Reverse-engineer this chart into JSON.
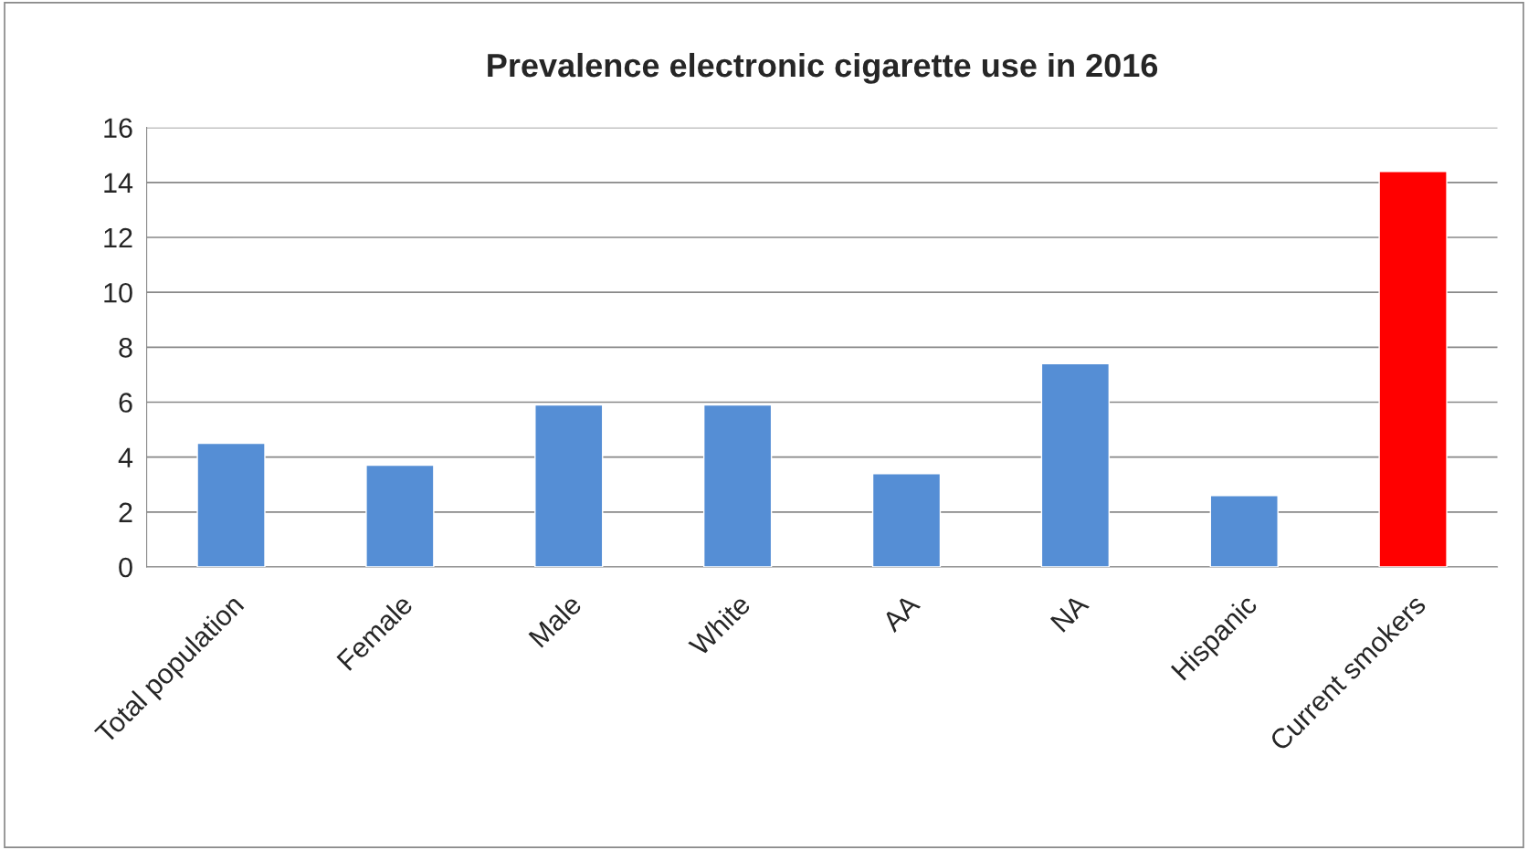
{
  "chart_data": {
    "type": "bar",
    "title": "Prevalence electronic cigarette use in 2016",
    "categories": [
      "Total population",
      "Female",
      "Male",
      "White",
      "AA",
      "NA",
      "Hispanic",
      "Current smokers"
    ],
    "values": [
      4.5,
      3.7,
      5.9,
      5.9,
      3.4,
      7.4,
      2.6,
      14.4
    ],
    "colors": [
      "#558ed5",
      "#558ed5",
      "#558ed5",
      "#558ed5",
      "#558ed5",
      "#558ed5",
      "#558ed5",
      "#ff0000"
    ],
    "ylim": [
      0,
      16
    ],
    "yticks": [
      0,
      2,
      4,
      6,
      8,
      10,
      12,
      14,
      16
    ],
    "grid": "y",
    "legend": false
  }
}
